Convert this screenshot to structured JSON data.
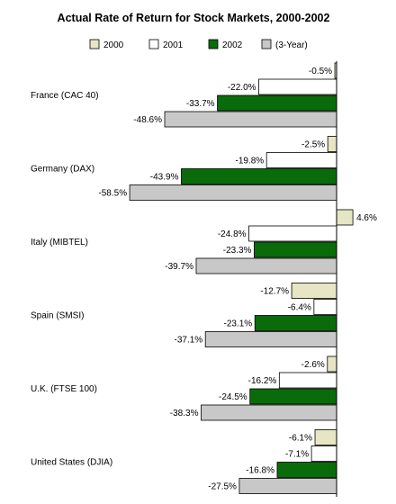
{
  "chart_data": {
    "type": "bar",
    "orientation": "horizontal",
    "title": "Actual Rate of Return for Stock Markets, 2000-2002",
    "categories": [
      "France (CAC 40)",
      "Germany (DAX)",
      "Italy (MIBTEL)",
      "Spain (SMSI)",
      "U.K. (FTSE 100)",
      "United States (DJIA)"
    ],
    "series": [
      {
        "name": "2000",
        "color": "#e6e6c4",
        "values": [
          -0.5,
          -2.5,
          4.6,
          -12.7,
          -2.6,
          -6.1
        ],
        "labels": [
          "-0.5%",
          "-2.5%",
          "4.6%",
          "-12.7%",
          "-2.6%",
          "-6.1%"
        ]
      },
      {
        "name": "2001",
        "color": "#ffffff",
        "values": [
          -22.0,
          -19.8,
          -24.8,
          -6.4,
          -16.2,
          -7.1
        ],
        "labels": [
          "-22.0%",
          "-19.8%",
          "-24.8%",
          "-6.4%",
          "-16.2%",
          "-7.1%"
        ]
      },
      {
        "name": "2002",
        "color": "#0a6b0a",
        "values": [
          -33.7,
          -43.9,
          -23.3,
          -23.1,
          -24.5,
          -16.8
        ],
        "labels": [
          "-33.7%",
          "-43.9%",
          "-23.3%",
          "-23.1%",
          "-24.5%",
          "-16.8%"
        ]
      },
      {
        "name": "(3-Year)",
        "color": "#c8c8c8",
        "values": [
          -48.6,
          -58.5,
          -39.7,
          -37.1,
          -38.3,
          -27.5
        ],
        "labels": [
          "-48.6%",
          "-58.5%",
          "-39.7%",
          "-37.1%",
          "-38.3%",
          "-27.5%"
        ]
      }
    ],
    "value_unit": "%",
    "grid": false,
    "legend_position": "top"
  }
}
